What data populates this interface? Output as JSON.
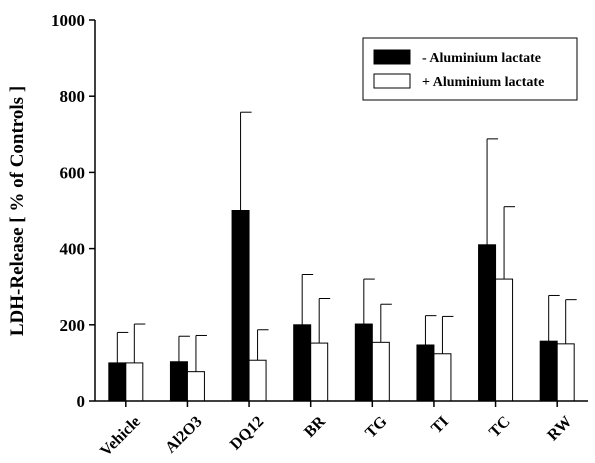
{
  "chart_data": {
    "type": "bar",
    "title": "",
    "xlabel": "",
    "ylabel": "LDH-Release [ % of Controls ]",
    "ylim": [
      0,
      1000
    ],
    "yticks": [
      0,
      200,
      400,
      600,
      800,
      1000
    ],
    "grid": false,
    "legend_position": "top-right",
    "categories": [
      "Vehicle",
      "Al2O3",
      "DQ12",
      "BR",
      "TG",
      "TI",
      "TC",
      "RW"
    ],
    "series": [
      {
        "name": "- Aluminium lactate",
        "color": "#000000",
        "values": [
          100,
          103,
          500,
          200,
          202,
          147,
          410,
          157
        ],
        "error_upper": [
          80,
          67,
          258,
          132,
          118,
          77,
          278,
          120
        ]
      },
      {
        "name": "+ Aluminium lactate",
        "color": "#ffffff",
        "values": [
          100,
          77,
          107,
          152,
          154,
          124,
          320,
          150
        ],
        "error_upper": [
          102,
          95,
          80,
          117,
          100,
          98,
          190,
          116
        ]
      }
    ]
  }
}
